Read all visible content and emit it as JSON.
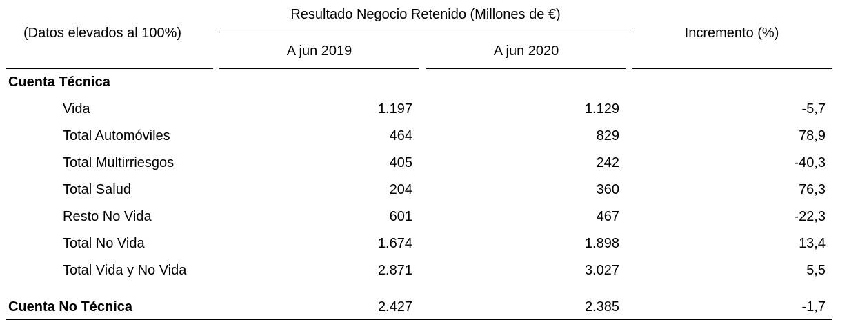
{
  "header": {
    "left_note": "(Datos elevados al 100%)",
    "group_title": "Resultado Negocio Retenido (Millones de €)",
    "col_2019": "A jun 2019",
    "col_2020": "A jun 2020",
    "col_increment": "Incremento (%)"
  },
  "sections": {
    "technical_title": "Cuenta Técnica",
    "rows": [
      {
        "label": "Vida",
        "v2019": "1.197",
        "v2020": "1.129",
        "inc": "-5,7"
      },
      {
        "label": "Total Automóviles",
        "v2019": "464",
        "v2020": "829",
        "inc": "78,9"
      },
      {
        "label": "Total Multirriesgos",
        "v2019": "405",
        "v2020": "242",
        "inc": "-40,3"
      },
      {
        "label": "Total Salud",
        "v2019": "204",
        "v2020": "360",
        "inc": "76,3"
      },
      {
        "label": "Resto No Vida",
        "v2019": "601",
        "v2020": "467",
        "inc": "-22,3"
      },
      {
        "label": "Total No Vida",
        "v2019": "1.674",
        "v2020": "1.898",
        "inc": "13,4"
      },
      {
        "label": "Total Vida y No Vida",
        "v2019": "2.871",
        "v2020": "3.027",
        "inc": "5,5"
      }
    ],
    "non_technical": {
      "label": "Cuenta No Técnica",
      "v2019": "2.427",
      "v2020": "2.385",
      "inc": "-1,7"
    }
  }
}
